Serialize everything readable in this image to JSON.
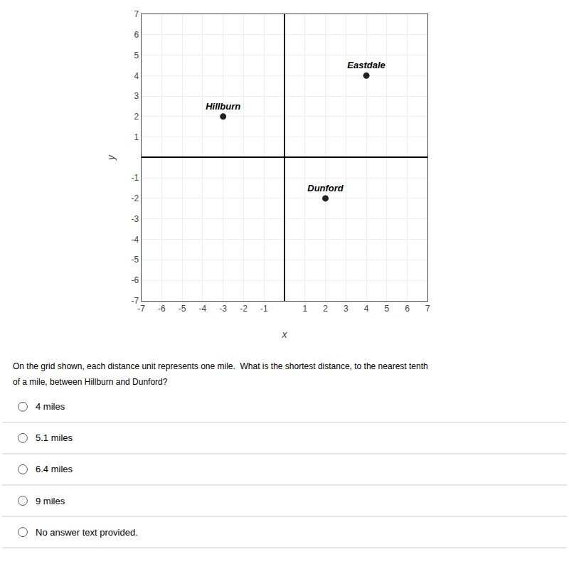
{
  "chart_data": {
    "type": "scatter",
    "x": [
      -3,
      4,
      2
    ],
    "values": [
      2,
      4,
      -2
    ],
    "point_labels": [
      "Hillburn",
      "Eastdale",
      "Dunford"
    ],
    "color": "#222222",
    "xlim": [
      -7,
      7
    ],
    "ylim": [
      -7,
      7
    ],
    "xticks": [
      -7,
      -6,
      -5,
      -4,
      -3,
      -2,
      -1,
      1,
      2,
      3,
      4,
      5,
      6,
      7
    ],
    "yticks": [
      -7,
      -6,
      -5,
      -4,
      -3,
      -2,
      -1,
      1,
      2,
      3,
      4,
      5,
      6,
      7
    ],
    "grid": true,
    "xlabel": "x",
    "ylabel": "y",
    "annotations": [
      "On the grid shown, each distance unit represents one mile.  What is the shortest distance, to the nearest tenth",
      "of a mile, between Hillburn and Dunford?"
    ],
    "choices": [
      "4 miles",
      "5.1 miles",
      "6.4 miles",
      "9 miles",
      "No answer text provided."
    ]
  }
}
